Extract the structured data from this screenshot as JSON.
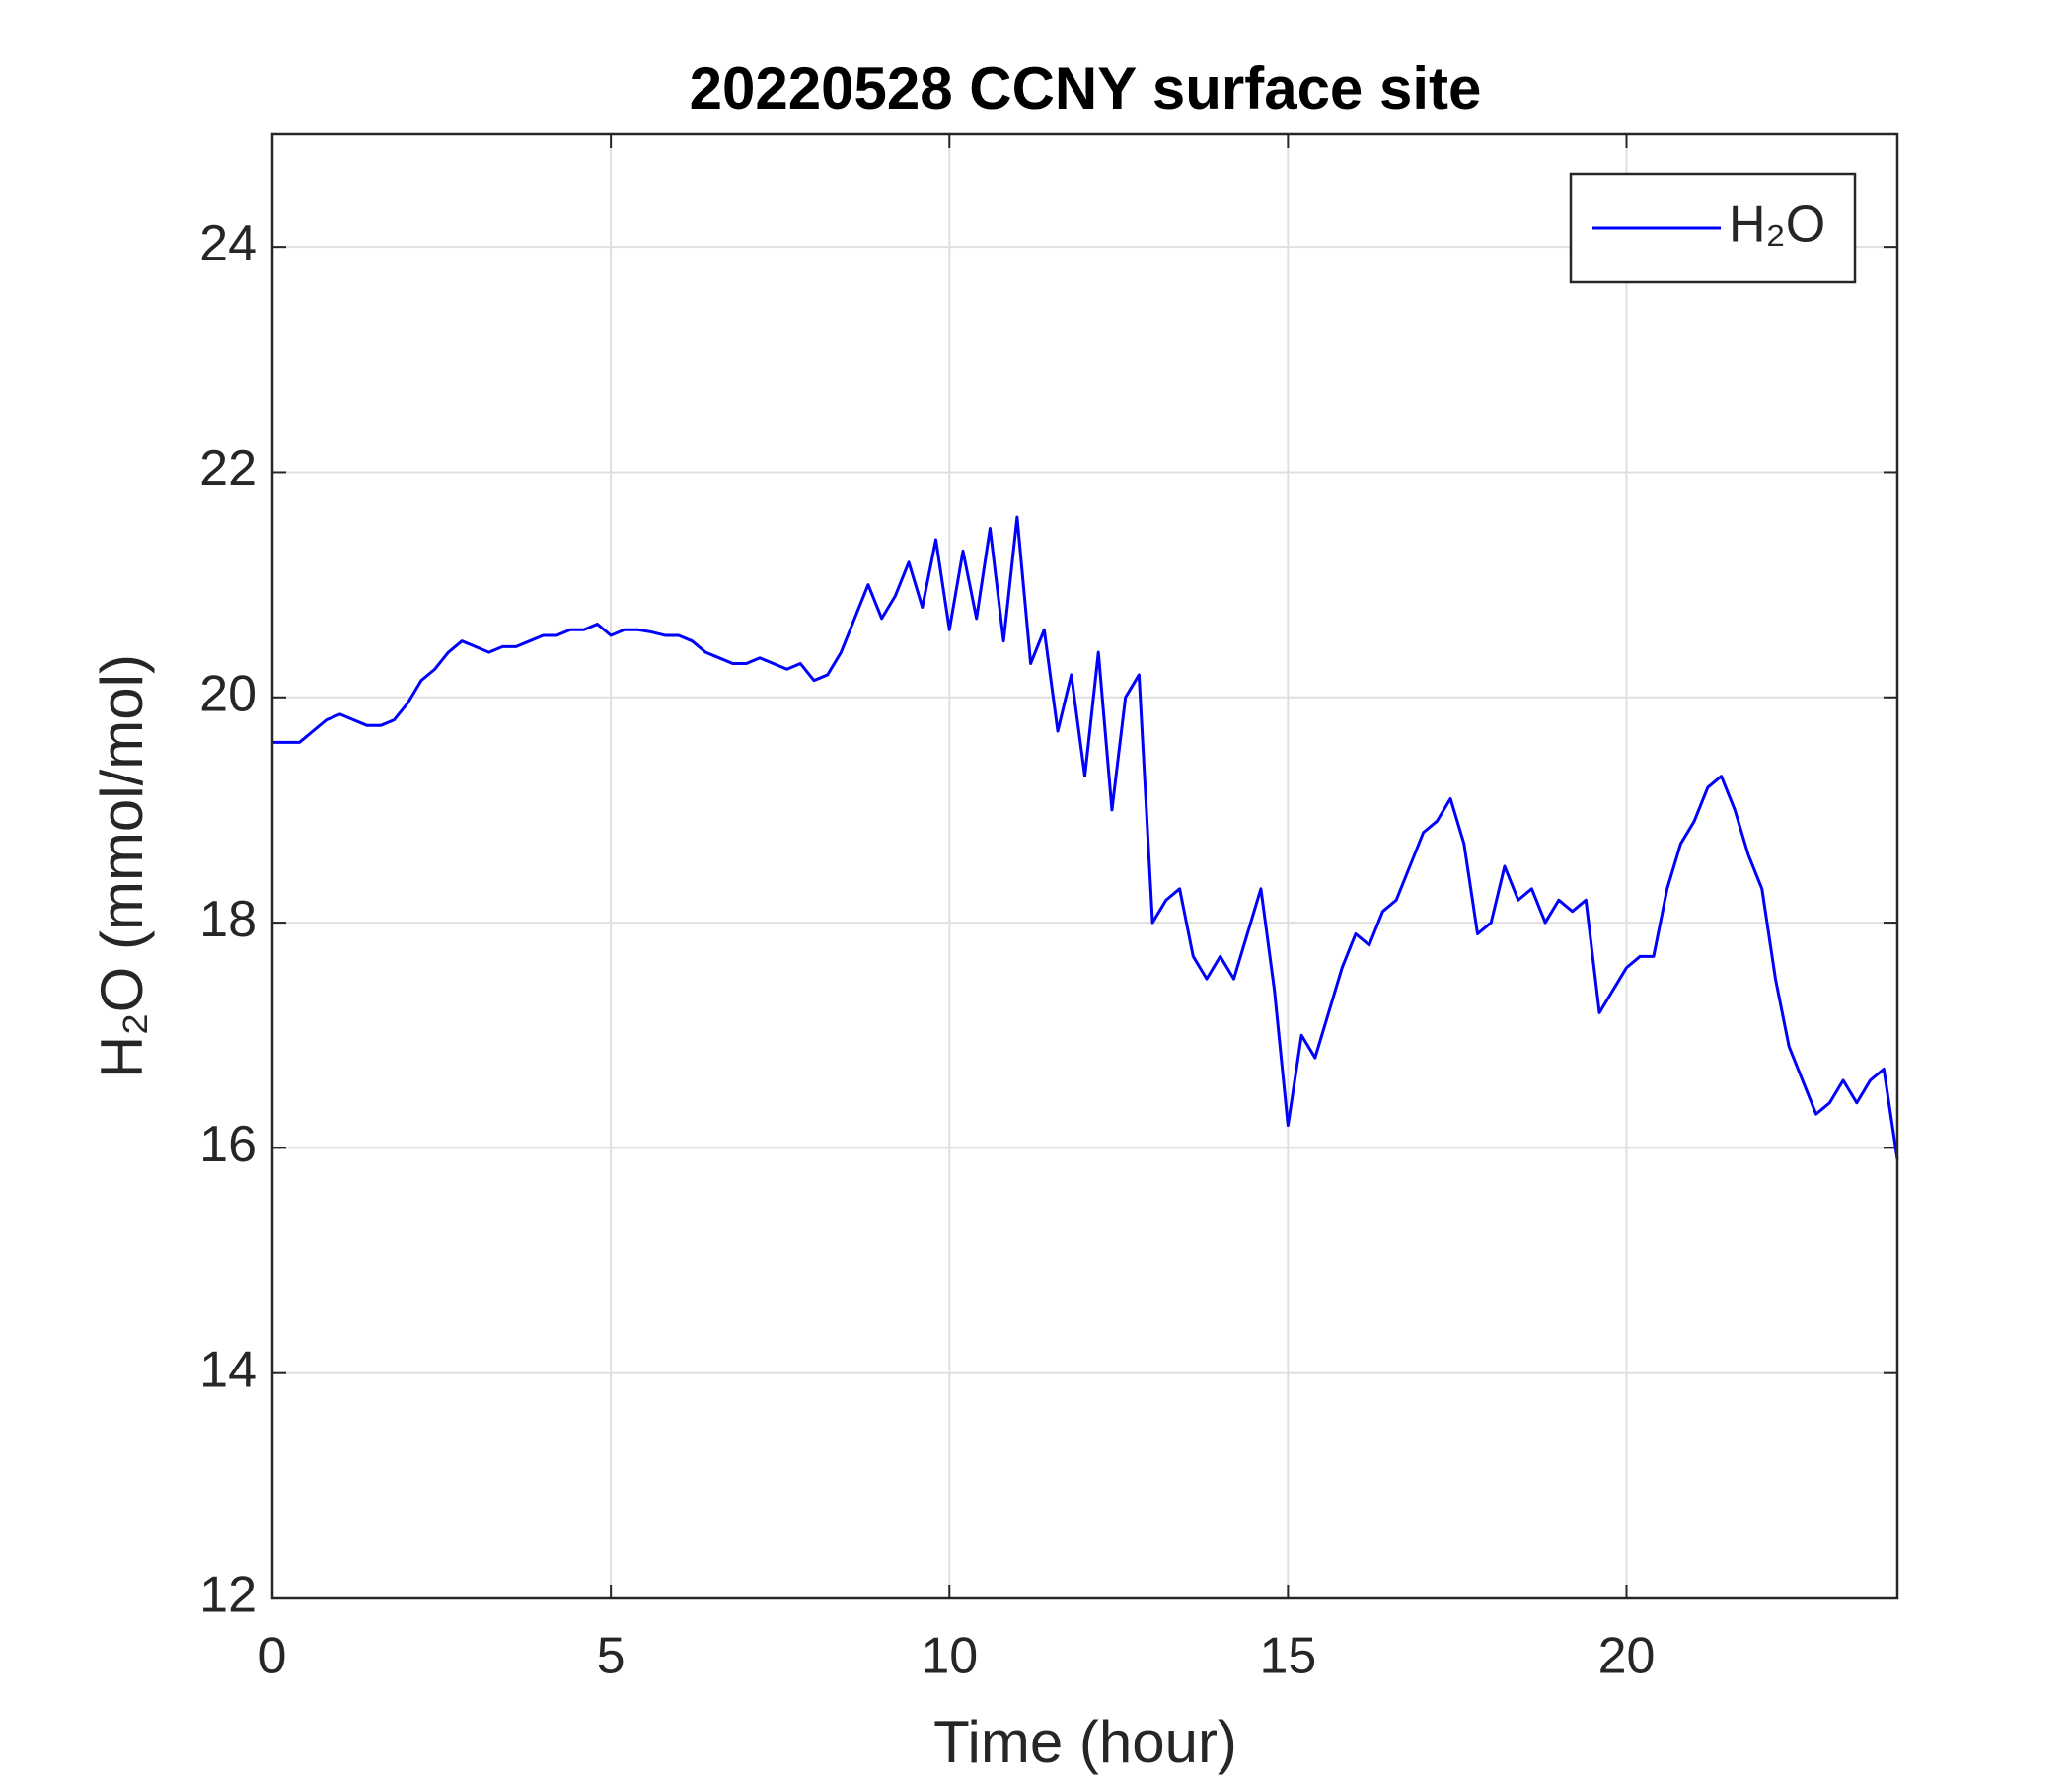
{
  "chart_data": {
    "type": "line",
    "title": "20220528 CCNY surface site",
    "x_label": "Time (hour)",
    "y_label": "H₂O (mmol/mol)",
    "xlim": [
      0,
      24
    ],
    "ylim": [
      12,
      25
    ],
    "xticks": [
      0,
      5,
      10,
      15,
      20
    ],
    "yticks": [
      12,
      14,
      16,
      18,
      20,
      22,
      24
    ],
    "grid": true,
    "legend": "upper right",
    "x": [
      0,
      0.2,
      0.4,
      0.6,
      0.8,
      1,
      1.2,
      1.4,
      1.6,
      1.8,
      2,
      2.2,
      2.4,
      2.6,
      2.8,
      3,
      3.2,
      3.4,
      3.6,
      3.8,
      4,
      4.2,
      4.4,
      4.6,
      4.8,
      5,
      5.2,
      5.4,
      5.6,
      5.8,
      6,
      6.2,
      6.4,
      6.6,
      6.8,
      7,
      7.2,
      7.4,
      7.6,
      7.8,
      8,
      8.2,
      8.4,
      8.6,
      8.8,
      9,
      9.2,
      9.4,
      9.6,
      9.8,
      10,
      10.2,
      10.4,
      10.6,
      10.8,
      11,
      11.2,
      11.4,
      11.6,
      11.8,
      12,
      12.2,
      12.4,
      12.6,
      12.8,
      13,
      13.2,
      13.4,
      13.6,
      13.8,
      14,
      14.2,
      14.4,
      14.6,
      14.8,
      15,
      15.2,
      15.4,
      15.6,
      15.8,
      16,
      16.2,
      16.4,
      16.6,
      16.8,
      17,
      17.2,
      17.4,
      17.6,
      17.8,
      18,
      18.2,
      18.4,
      18.6,
      18.8,
      19,
      19.2,
      19.4,
      19.6,
      19.8,
      20,
      20.2,
      20.4,
      20.6,
      20.8,
      21,
      21.2,
      21.4,
      21.6,
      21.8,
      22,
      22.2,
      22.4,
      22.6,
      22.8,
      23,
      23.2,
      23.4,
      23.6,
      23.8,
      24
    ],
    "series": [
      {
        "name": "H₂O",
        "color": "#0000ff",
        "values": [
          19.6,
          19.6,
          19.6,
          19.7,
          19.8,
          19.85,
          19.8,
          19.75,
          19.75,
          19.8,
          19.95,
          20.15,
          20.25,
          20.4,
          20.5,
          20.45,
          20.4,
          20.45,
          20.45,
          20.5,
          20.55,
          20.55,
          20.6,
          20.6,
          20.65,
          20.55,
          20.6,
          20.6,
          20.58,
          20.55,
          20.55,
          20.5,
          20.4,
          20.35,
          20.3,
          20.3,
          20.35,
          20.3,
          20.25,
          20.3,
          20.15,
          20.2,
          20.4,
          20.7,
          21.0,
          20.7,
          20.9,
          21.2,
          20.8,
          21.4,
          20.6,
          21.3,
          20.7,
          21.5,
          20.5,
          21.6,
          20.3,
          20.6,
          19.7,
          20.2,
          19.3,
          20.4,
          19.0,
          20.0,
          20.2,
          18.0,
          18.2,
          18.3,
          17.7,
          17.5,
          17.7,
          17.5,
          17.9,
          18.3,
          17.4,
          16.2,
          17.0,
          16.8,
          17.2,
          17.6,
          17.9,
          17.8,
          18.1,
          18.2,
          18.5,
          18.8,
          18.9,
          19.1,
          18.7,
          17.9,
          18.0,
          18.5,
          18.2,
          18.3,
          18.0,
          18.2,
          18.1,
          18.2,
          17.2,
          17.4,
          17.6,
          17.7,
          17.7,
          18.3,
          18.7,
          18.9,
          19.2,
          19.3,
          19.0,
          18.6,
          18.3,
          17.5,
          16.9,
          16.6,
          16.3,
          16.4,
          16.6,
          16.4,
          16.6,
          16.7,
          15.9
        ]
      }
    ]
  }
}
